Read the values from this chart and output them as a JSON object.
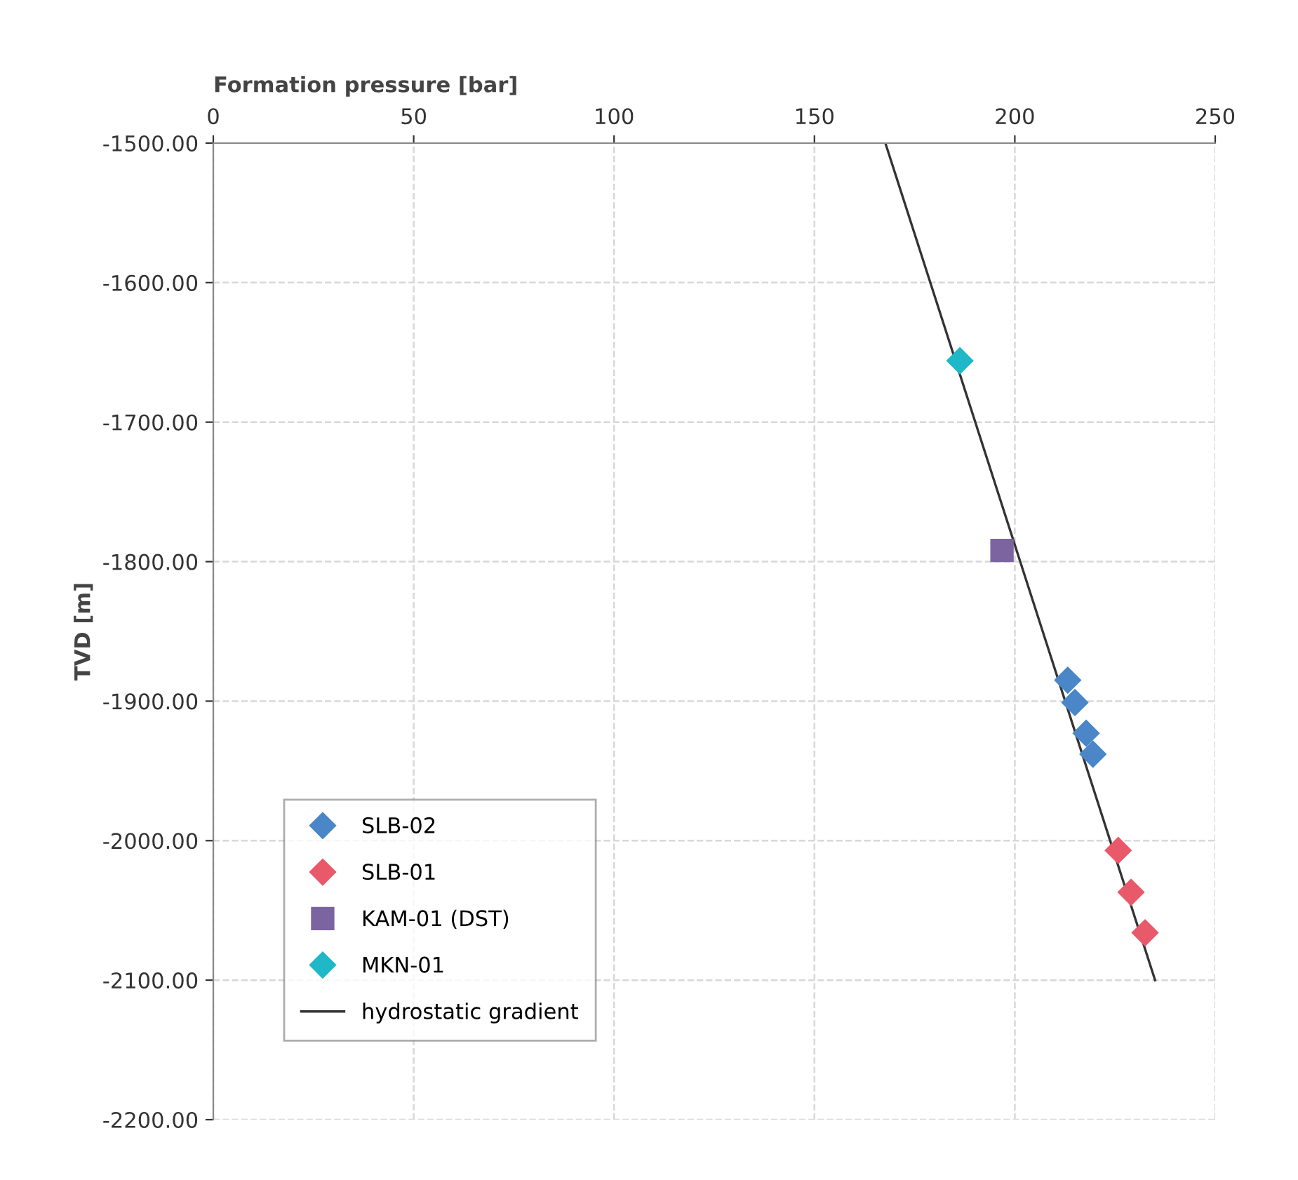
{
  "chart_data": {
    "type": "scatter",
    "xlabel": "Formation pressure [bar]",
    "ylabel": "TVD [m]",
    "xlim": [
      0,
      250
    ],
    "xticks": [
      0,
      50,
      100,
      150,
      200,
      250
    ],
    "ylim": [
      -2200,
      -1500
    ],
    "yticks": [
      {
        "value": -2200,
        "label": "-2200.00"
      },
      {
        "value": -2100,
        "label": "-2100.00"
      },
      {
        "value": -2000,
        "label": "-2000.00"
      },
      {
        "value": -1900,
        "label": "-1900.00"
      },
      {
        "value": -1800,
        "label": "-1800.00"
      },
      {
        "value": -1700,
        "label": "-1700.00"
      },
      {
        "value": -1600,
        "label": "-1600.00"
      },
      {
        "value": -1500,
        "label": "-1500.00"
      }
    ],
    "grid": true,
    "legend": "bottom left",
    "series": [
      {
        "name": "SLB-02",
        "color": "#4a86c8",
        "marker": "diamond",
        "x": [
          213.2,
          215.0,
          217.8,
          219.5
        ],
        "values": [
          -1885,
          -1901,
          -1923,
          -1938
        ]
      },
      {
        "name": "SLB-01",
        "color": "#e8596a",
        "marker": "diamond",
        "x": [
          225.8,
          229.0,
          232.5
        ],
        "values": [
          -2007,
          -2037,
          -2066
        ]
      },
      {
        "name": "KAM-01 (DST)",
        "color": "#7b64a0",
        "marker": "square",
        "x": [
          196.8
        ],
        "values": [
          -1792
        ]
      },
      {
        "name": "MKN-01",
        "color": "#1fb8c8",
        "marker": "diamond",
        "x": [
          186.3
        ],
        "values": [
          -1656
        ]
      },
      {
        "name": "hydrostatic gradient",
        "type": "line",
        "color": "#333333",
        "marker": "none",
        "line_style": "solid",
        "x": [
          167.7,
          235.0
        ],
        "values": [
          -1500,
          -2100
        ]
      }
    ]
  }
}
